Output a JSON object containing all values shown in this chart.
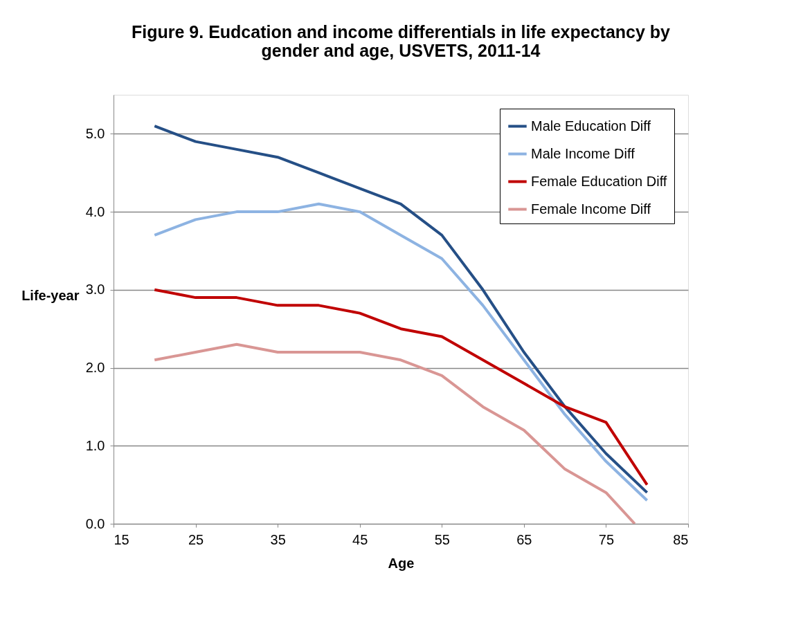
{
  "chart_data": {
    "type": "line",
    "title": "Figure 9. Eudcation and income differentials in life expectancy by gender and age, USVETS, 2011-14",
    "xlabel": "Age",
    "ylabel": "Life-year",
    "x": [
      20,
      25,
      30,
      35,
      40,
      45,
      50,
      55,
      60,
      65,
      70,
      75,
      80
    ],
    "series": [
      {
        "name": "Male Education Diff",
        "color": "#254f86",
        "values": [
          5.1,
          4.9,
          4.8,
          4.7,
          4.5,
          4.3,
          4.1,
          3.7,
          3.0,
          2.2,
          1.5,
          0.9,
          0.4
        ]
      },
      {
        "name": "Male Income Diff",
        "color": "#8db3e2",
        "values": [
          3.7,
          3.9,
          4.0,
          4.0,
          4.1,
          4.0,
          3.7,
          3.4,
          2.8,
          2.1,
          1.4,
          0.8,
          0.3
        ]
      },
      {
        "name": "Female Education Diff",
        "color": "#c00000",
        "values": [
          3.0,
          2.9,
          2.9,
          2.8,
          2.8,
          2.7,
          2.5,
          2.4,
          2.1,
          1.8,
          1.5,
          1.3,
          0.5
        ]
      },
      {
        "name": "Female Income Diff",
        "color": "#d99694",
        "x": [
          20,
          25,
          30,
          35,
          40,
          45,
          50,
          55,
          60,
          65,
          70,
          75,
          78.5
        ],
        "values": [
          2.1,
          2.2,
          2.3,
          2.2,
          2.2,
          2.2,
          2.1,
          1.9,
          1.5,
          1.2,
          0.7,
          0.4,
          0.0
        ]
      }
    ],
    "xlim": [
      15,
      85
    ],
    "xticks": [
      15,
      25,
      35,
      45,
      55,
      65,
      75,
      85
    ],
    "ylim": [
      0,
      5.5
    ],
    "yticks": [
      {
        "value": 0,
        "label": "0.0"
      },
      {
        "value": 1,
        "label": "1.0"
      },
      {
        "value": 2,
        "label": "2.0"
      },
      {
        "value": 3,
        "label": "3.0"
      },
      {
        "value": 4,
        "label": "4.0"
      },
      {
        "value": 5,
        "label": "5.0"
      }
    ],
    "grid": "y",
    "legend": "top right",
    "marker": "none",
    "line_style": "solid"
  }
}
